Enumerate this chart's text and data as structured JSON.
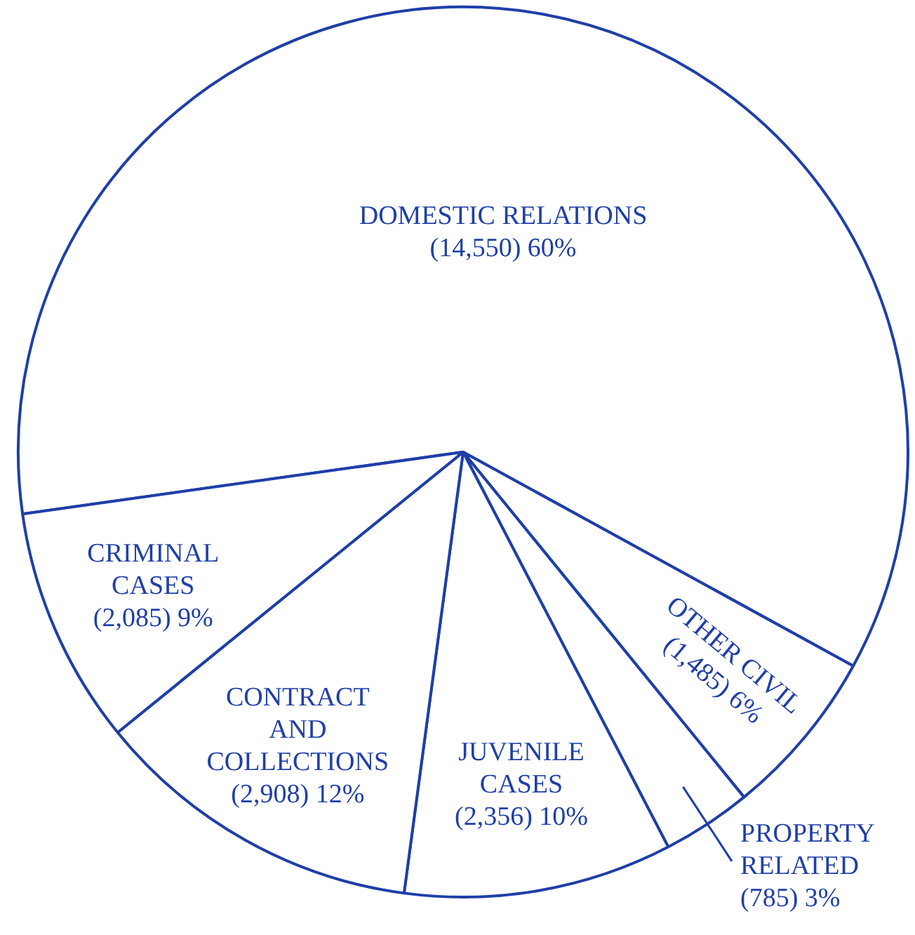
{
  "chart_data": {
    "type": "pie",
    "categories": [
      "DOMESTIC RELATIONS",
      "OTHER CIVIL",
      "PROPERTY RELATED",
      "JUVENILE CASES",
      "CONTRACT AND COLLECTIONS",
      "CRIMINAL CASES"
    ],
    "values": [
      14550,
      1485,
      785,
      2356,
      2908,
      2085
    ],
    "value_labels": [
      "(14,550) 60%",
      "(1,485) 6%",
      "(785) 3%",
      "(2,356) 10%",
      "(2,908) 12%",
      "(2,085) 9%"
    ],
    "colors": [
      "#ffffff",
      "#ffffff",
      "#ffffff",
      "#ffffff",
      "#ffffff",
      "#ffffff"
    ],
    "legend": false
  }
}
